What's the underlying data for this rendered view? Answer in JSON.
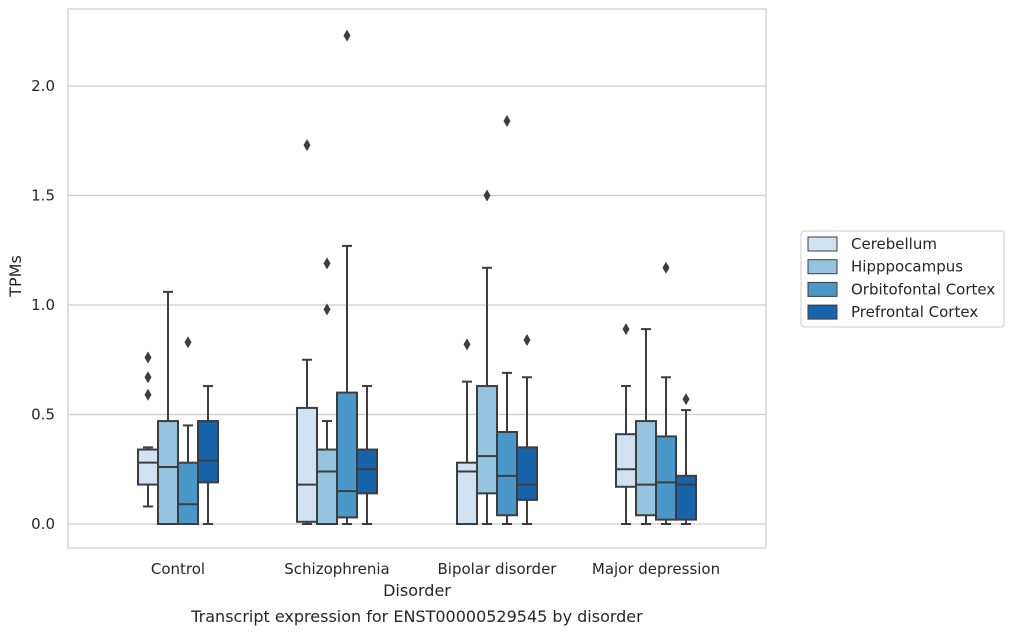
{
  "chart_data": {
    "type": "box",
    "xlabel": "Disorder",
    "ylabel": "TPMs",
    "caption": "Transcript expression for ENST00000529545 by disorder",
    "categories": [
      "Control",
      "Schizophrenia",
      "Bipolar disorder",
      "Major depression"
    ],
    "ylim": [
      -0.11,
      2.35
    ],
    "yticks": [
      0.0,
      0.5,
      1.0,
      1.5,
      2.0
    ],
    "ytick_labels": [
      "0.0",
      "0.5",
      "1.0",
      "1.5",
      "2.0"
    ],
    "grid": true,
    "legend_position": "right",
    "series": [
      {
        "name": "Cerebellum",
        "color": "#d0e1f2",
        "boxes": [
          {
            "whislo": 0.08,
            "q1": 0.18,
            "med": 0.28,
            "q3": 0.34,
            "whishi": 0.35,
            "fliers": [
              0.59,
              0.67,
              0.76
            ]
          },
          {
            "whislo": 0.0,
            "q1": 0.01,
            "med": 0.18,
            "q3": 0.53,
            "whishi": 0.75,
            "fliers": [
              1.73
            ]
          },
          {
            "whislo": 0.0,
            "q1": 0.0,
            "med": 0.24,
            "q3": 0.28,
            "whishi": 0.65,
            "fliers": [
              0.82
            ]
          },
          {
            "whislo": 0.0,
            "q1": 0.17,
            "med": 0.25,
            "q3": 0.41,
            "whishi": 0.63,
            "fliers": [
              0.89
            ]
          }
        ]
      },
      {
        "name": "Hipppocampus",
        "color": "#94c4df",
        "boxes": [
          {
            "whislo": 0.0,
            "q1": 0.0,
            "med": 0.26,
            "q3": 0.47,
            "whishi": 1.06,
            "fliers": []
          },
          {
            "whislo": 0.0,
            "q1": 0.0,
            "med": 0.24,
            "q3": 0.34,
            "whishi": 0.47,
            "fliers": [
              0.98,
              1.19
            ]
          },
          {
            "whislo": 0.0,
            "q1": 0.14,
            "med": 0.31,
            "q3": 0.63,
            "whishi": 1.17,
            "fliers": [
              1.5
            ]
          },
          {
            "whislo": 0.0,
            "q1": 0.04,
            "med": 0.18,
            "q3": 0.47,
            "whishi": 0.89,
            "fliers": []
          }
        ]
      },
      {
        "name": "Orbitofontal Cortex",
        "color": "#4a98c9",
        "boxes": [
          {
            "whislo": 0.0,
            "q1": 0.0,
            "med": 0.09,
            "q3": 0.28,
            "whishi": 0.45,
            "fliers": [
              0.83
            ]
          },
          {
            "whislo": 0.0,
            "q1": 0.03,
            "med": 0.15,
            "q3": 0.6,
            "whishi": 1.27,
            "fliers": [
              2.23
            ]
          },
          {
            "whislo": 0.0,
            "q1": 0.04,
            "med": 0.22,
            "q3": 0.42,
            "whishi": 0.69,
            "fliers": [
              1.84
            ]
          },
          {
            "whislo": 0.0,
            "q1": 0.02,
            "med": 0.19,
            "q3": 0.4,
            "whishi": 0.67,
            "fliers": [
              1.17
            ]
          }
        ]
      },
      {
        "name": "Prefrontal Cortex",
        "color": "#1764ab",
        "boxes": [
          {
            "whislo": 0.0,
            "q1": 0.19,
            "med": 0.29,
            "q3": 0.47,
            "whishi": 0.63,
            "fliers": []
          },
          {
            "whislo": 0.0,
            "q1": 0.14,
            "med": 0.25,
            "q3": 0.34,
            "whishi": 0.63,
            "fliers": []
          },
          {
            "whislo": 0.0,
            "q1": 0.11,
            "med": 0.18,
            "q3": 0.35,
            "whishi": 0.67,
            "fliers": [
              0.84
            ]
          },
          {
            "whislo": 0.0,
            "q1": 0.02,
            "med": 0.18,
            "q3": 0.22,
            "whishi": 0.52,
            "fliers": [
              0.57
            ]
          }
        ]
      }
    ]
  }
}
